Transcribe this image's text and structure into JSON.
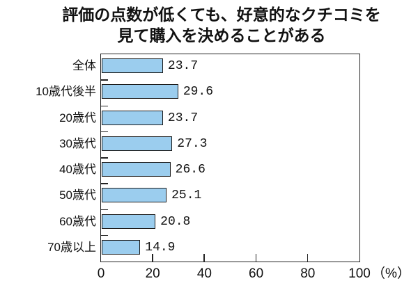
{
  "chart_data": {
    "type": "bar",
    "orientation": "horizontal",
    "title": "評価の点数が低くても、好意的なクチコミを見て購入を決めることがある",
    "title_lines": [
      "評価の点数が低くても、好意的なクチコミを",
      "見て購入を決めることがある"
    ],
    "categories": [
      "全体",
      "10歳代後半",
      "20歳代",
      "30歳代",
      "40歳代",
      "50歳代",
      "60歳代",
      "70歳以上"
    ],
    "values": [
      23.7,
      29.6,
      23.7,
      27.3,
      26.6,
      25.1,
      20.8,
      14.9
    ],
    "value_labels": [
      "23.7",
      "29.6",
      "23.7",
      "27.3",
      "26.6",
      "25.1",
      "20.8",
      "14.9"
    ],
    "xlabel": "",
    "ylabel": "",
    "xlim": [
      0,
      100
    ],
    "x_ticks": [
      "0",
      "20",
      "40",
      "60",
      "80",
      "100"
    ],
    "x_unit": "（%）",
    "grid": false,
    "legend": null,
    "bar_color": "#9BCDEE",
    "bar_border_color": "#1a1a1a"
  }
}
